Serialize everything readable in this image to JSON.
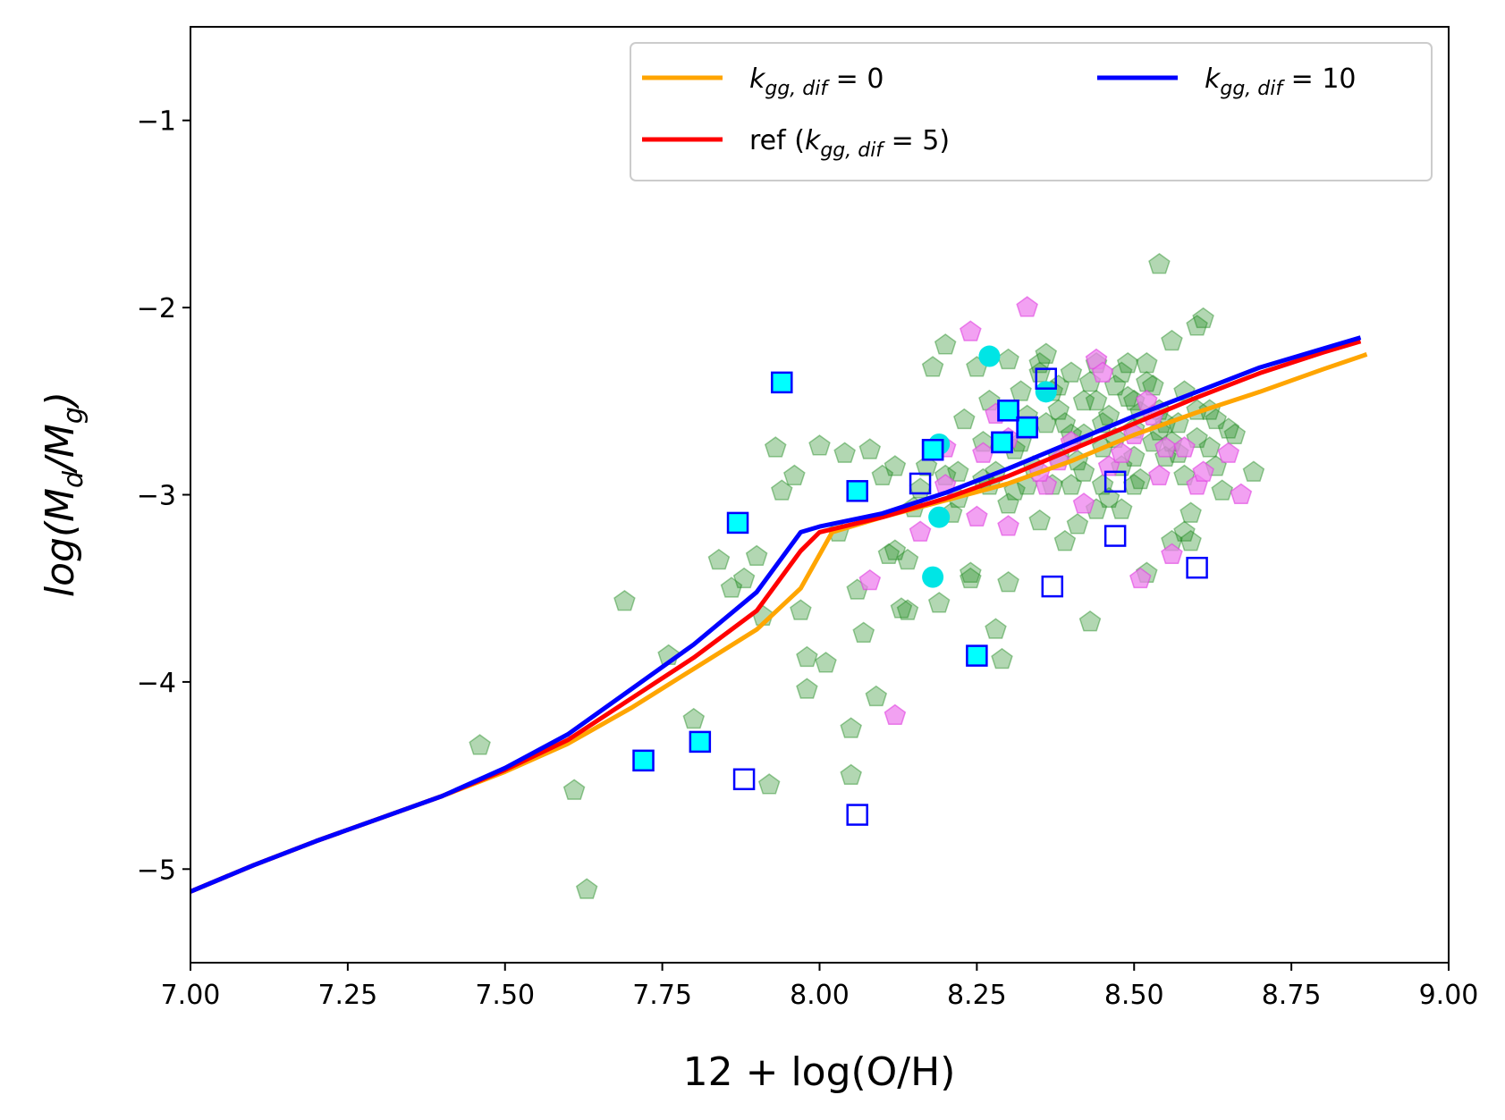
{
  "chart_data": {
    "type": "line",
    "title": "",
    "xlabel": "12 + log(O/H)",
    "ylabel_parts": [
      "log(M",
      "d",
      "/M",
      "g",
      ")"
    ],
    "xlim": [
      7.0,
      9.0
    ],
    "ylim": [
      -5.5,
      -0.5
    ],
    "xticks": [
      7.0,
      7.25,
      7.5,
      7.75,
      8.0,
      8.25,
      8.5,
      8.75,
      9.0
    ],
    "xtick_labels": [
      "7.00",
      "7.25",
      "7.50",
      "7.75",
      "8.00",
      "8.25",
      "8.50",
      "8.75",
      "9.00"
    ],
    "yticks": [
      -1,
      -2,
      -3,
      -4,
      -5
    ],
    "ytick_labels": [
      "−1",
      "−2",
      "−3",
      "−4",
      "−5"
    ],
    "grid": false,
    "legend": {
      "position": "top-right",
      "entries": [
        {
          "main": "k",
          "sub": "gg, dif",
          "suffix": " =  0",
          "prefix": "",
          "close": "",
          "color": "#ffa500"
        },
        {
          "main": "k",
          "sub": "gg, dif",
          "suffix": " =  5",
          "prefix": "ref (",
          "close": ")",
          "color": "#ff0000"
        },
        {
          "main": "k",
          "sub": "gg, dif",
          "suffix": " =  10",
          "prefix": "",
          "close": "",
          "color": "#0000ff"
        }
      ]
    },
    "series": [
      {
        "name": "k_gg,dif = 0",
        "color": "#ffa500",
        "points": [
          [
            7.0,
            -5.12
          ],
          [
            7.1,
            -4.98
          ],
          [
            7.2,
            -4.85
          ],
          [
            7.3,
            -4.73
          ],
          [
            7.4,
            -4.61
          ],
          [
            7.5,
            -4.48
          ],
          [
            7.6,
            -4.33
          ],
          [
            7.7,
            -4.14
          ],
          [
            7.8,
            -3.93
          ],
          [
            7.9,
            -3.72
          ],
          [
            7.97,
            -3.5
          ],
          [
            8.02,
            -3.2
          ],
          [
            8.1,
            -3.12
          ],
          [
            8.2,
            -3.03
          ],
          [
            8.3,
            -2.94
          ],
          [
            8.4,
            -2.82
          ],
          [
            8.5,
            -2.68
          ],
          [
            8.6,
            -2.56
          ],
          [
            8.7,
            -2.45
          ],
          [
            8.8,
            -2.33
          ],
          [
            8.87,
            -2.25
          ]
        ]
      },
      {
        "name": "ref (k_gg,dif = 5)",
        "color": "#ff0000",
        "points": [
          [
            7.0,
            -5.12
          ],
          [
            7.1,
            -4.98
          ],
          [
            7.2,
            -4.85
          ],
          [
            7.3,
            -4.73
          ],
          [
            7.4,
            -4.61
          ],
          [
            7.5,
            -4.47
          ],
          [
            7.6,
            -4.31
          ],
          [
            7.7,
            -4.09
          ],
          [
            7.8,
            -3.87
          ],
          [
            7.9,
            -3.62
          ],
          [
            7.97,
            -3.3
          ],
          [
            8.0,
            -3.2
          ],
          [
            8.1,
            -3.12
          ],
          [
            8.2,
            -3.02
          ],
          [
            8.3,
            -2.9
          ],
          [
            8.4,
            -2.76
          ],
          [
            8.5,
            -2.62
          ],
          [
            8.6,
            -2.48
          ],
          [
            8.7,
            -2.35
          ],
          [
            8.8,
            -2.24
          ],
          [
            8.86,
            -2.18
          ]
        ]
      },
      {
        "name": "k_gg,dif = 10",
        "color": "#0000ff",
        "points": [
          [
            7.0,
            -5.12
          ],
          [
            7.1,
            -4.98
          ],
          [
            7.2,
            -4.85
          ],
          [
            7.3,
            -4.73
          ],
          [
            7.4,
            -4.61
          ],
          [
            7.5,
            -4.46
          ],
          [
            7.6,
            -4.28
          ],
          [
            7.7,
            -4.04
          ],
          [
            7.8,
            -3.8
          ],
          [
            7.9,
            -3.52
          ],
          [
            7.97,
            -3.2
          ],
          [
            8.0,
            -3.17
          ],
          [
            8.1,
            -3.1
          ],
          [
            8.2,
            -2.99
          ],
          [
            8.3,
            -2.86
          ],
          [
            8.4,
            -2.72
          ],
          [
            8.5,
            -2.58
          ],
          [
            8.6,
            -2.45
          ],
          [
            8.7,
            -2.32
          ],
          [
            8.8,
            -2.22
          ],
          [
            8.86,
            -2.16
          ]
        ]
      }
    ],
    "scatter": {
      "green_pentagons": {
        "color": "#228b22",
        "points": [
          [
            7.46,
            -4.34
          ],
          [
            7.61,
            -4.58
          ],
          [
            7.63,
            -5.11
          ],
          [
            7.69,
            -3.57
          ],
          [
            7.76,
            -3.86
          ],
          [
            7.8,
            -4.2
          ],
          [
            7.84,
            -3.35
          ],
          [
            7.86,
            -3.5
          ],
          [
            7.88,
            -3.45
          ],
          [
            7.9,
            -3.33
          ],
          [
            7.91,
            -3.65
          ],
          [
            7.92,
            -4.55
          ],
          [
            7.93,
            -2.75
          ],
          [
            7.94,
            -2.98
          ],
          [
            7.96,
            -2.9
          ],
          [
            7.97,
            -3.62
          ],
          [
            7.98,
            -3.87
          ],
          [
            7.98,
            -4.04
          ],
          [
            8.0,
            -2.74
          ],
          [
            8.01,
            -3.9
          ],
          [
            8.03,
            -3.2
          ],
          [
            8.04,
            -2.78
          ],
          [
            8.05,
            -4.5
          ],
          [
            8.05,
            -4.25
          ],
          [
            8.06,
            -3.51
          ],
          [
            8.07,
            -3.74
          ],
          [
            8.08,
            -2.76
          ],
          [
            8.09,
            -4.08
          ],
          [
            8.1,
            -2.9
          ],
          [
            8.11,
            -3.32
          ],
          [
            8.12,
            -2.85
          ],
          [
            8.13,
            -3.61
          ],
          [
            8.14,
            -3.35
          ],
          [
            8.15,
            -3.07
          ],
          [
            8.16,
            -2.97
          ],
          [
            8.18,
            -2.32
          ],
          [
            8.19,
            -3.58
          ],
          [
            8.2,
            -2.2
          ],
          [
            8.21,
            -3.1
          ],
          [
            8.22,
            -2.88
          ],
          [
            8.23,
            -2.6
          ],
          [
            8.24,
            -3.42
          ],
          [
            8.25,
            -2.32
          ],
          [
            8.26,
            -2.92
          ],
          [
            8.27,
            -2.5
          ],
          [
            8.28,
            -3.72
          ],
          [
            8.29,
            -3.88
          ],
          [
            8.3,
            -2.28
          ],
          [
            8.3,
            -3.47
          ],
          [
            8.31,
            -2.98
          ],
          [
            8.32,
            -2.72
          ],
          [
            8.33,
            -2.58
          ],
          [
            8.34,
            -2.85
          ],
          [
            8.35,
            -3.14
          ],
          [
            8.35,
            -2.3
          ],
          [
            8.36,
            -2.25
          ],
          [
            8.37,
            -2.45
          ],
          [
            8.38,
            -2.8
          ],
          [
            8.39,
            -2.62
          ],
          [
            8.4,
            -2.35
          ],
          [
            8.4,
            -2.95
          ],
          [
            8.41,
            -3.16
          ],
          [
            8.42,
            -2.5
          ],
          [
            8.42,
            -2.68
          ],
          [
            8.43,
            -3.68
          ],
          [
            8.44,
            -2.3
          ],
          [
            8.45,
            -2.75
          ],
          [
            8.46,
            -2.58
          ],
          [
            8.47,
            -2.42
          ],
          [
            8.48,
            -3.08
          ],
          [
            8.48,
            -2.85
          ],
          [
            8.49,
            -2.3
          ],
          [
            8.5,
            -2.65
          ],
          [
            8.5,
            -2.5
          ],
          [
            8.51,
            -2.92
          ],
          [
            8.52,
            -2.4
          ],
          [
            8.52,
            -3.42
          ],
          [
            8.53,
            -2.72
          ],
          [
            8.54,
            -1.77
          ],
          [
            8.54,
            -2.55
          ],
          [
            8.55,
            -2.8
          ],
          [
            8.56,
            -3.25
          ],
          [
            8.56,
            -2.18
          ],
          [
            8.57,
            -2.62
          ],
          [
            8.58,
            -2.45
          ],
          [
            8.58,
            -2.9
          ],
          [
            8.59,
            -3.1
          ],
          [
            8.6,
            -2.1
          ],
          [
            8.6,
            -2.7
          ],
          [
            8.61,
            -2.06
          ],
          [
            8.62,
            -2.55
          ],
          [
            8.63,
            -2.85
          ],
          [
            8.64,
            -2.98
          ],
          [
            8.65,
            -2.65
          ],
          [
            8.66,
            -2.68
          ],
          [
            8.69,
            -2.88
          ],
          [
            8.59,
            -3.25
          ],
          [
            8.45,
            -2.95
          ],
          [
            8.38,
            -2.55
          ],
          [
            8.32,
            -2.45
          ],
          [
            8.28,
            -2.88
          ],
          [
            8.22,
            -3.02
          ],
          [
            8.2,
            -2.9
          ],
          [
            8.17,
            -2.85
          ],
          [
            8.36,
            -2.62
          ],
          [
            8.44,
            -2.5
          ],
          [
            8.47,
            -2.7
          ],
          [
            8.53,
            -2.42
          ],
          [
            8.57,
            -2.78
          ],
          [
            8.41,
            -2.82
          ],
          [
            8.33,
            -2.95
          ],
          [
            8.26,
            -2.72
          ],
          [
            8.43,
            -2.4
          ],
          [
            8.39,
            -3.25
          ],
          [
            8.46,
            -3.02
          ],
          [
            8.51,
            -2.56
          ],
          [
            8.55,
            -2.62
          ],
          [
            8.49,
            -2.48
          ],
          [
            8.5,
            -2.8
          ],
          [
            8.4,
            -2.68
          ],
          [
            8.3,
            -3.05
          ],
          [
            8.6,
            -2.55
          ],
          [
            8.62,
            -2.75
          ],
          [
            8.24,
            -3.45
          ],
          [
            8.12,
            -3.3
          ],
          [
            8.14,
            -3.62
          ],
          [
            8.35,
            -2.35
          ],
          [
            8.48,
            -2.35
          ],
          [
            8.52,
            -2.3
          ],
          [
            8.45,
            -2.62
          ],
          [
            8.38,
            -2.42
          ],
          [
            8.42,
            -2.88
          ],
          [
            8.58,
            -3.2
          ],
          [
            8.56,
            -2.72
          ],
          [
            8.63,
            -2.6
          ],
          [
            8.37,
            -2.95
          ],
          [
            8.31,
            -2.76
          ],
          [
            8.27,
            -2.95
          ],
          [
            8.44,
            -3.08
          ],
          [
            8.5,
            -2.95
          ],
          [
            8.54,
            -2.66
          ]
        ]
      },
      "magenta_pentagons": {
        "color": "#ee82ee",
        "points": [
          [
            8.08,
            -3.46
          ],
          [
            8.12,
            -4.18
          ],
          [
            8.16,
            -3.2
          ],
          [
            8.2,
            -2.75
          ],
          [
            8.24,
            -2.13
          ],
          [
            8.25,
            -3.12
          ],
          [
            8.26,
            -2.78
          ],
          [
            8.28,
            -2.57
          ],
          [
            8.3,
            -3.17
          ],
          [
            8.33,
            -2.0
          ],
          [
            8.36,
            -2.95
          ],
          [
            8.38,
            -2.82
          ],
          [
            8.4,
            -2.72
          ],
          [
            8.42,
            -3.05
          ],
          [
            8.44,
            -2.28
          ],
          [
            8.45,
            -2.35
          ],
          [
            8.46,
            -2.85
          ],
          [
            8.48,
            -2.78
          ],
          [
            8.5,
            -2.68
          ],
          [
            8.51,
            -3.45
          ],
          [
            8.52,
            -2.5
          ],
          [
            8.54,
            -2.9
          ],
          [
            8.55,
            -2.75
          ],
          [
            8.56,
            -3.32
          ],
          [
            8.58,
            -2.75
          ],
          [
            8.6,
            -2.95
          ],
          [
            8.61,
            -2.88
          ],
          [
            8.65,
            -2.78
          ],
          [
            8.67,
            -3.0
          ],
          [
            8.35,
            -2.88
          ],
          [
            8.3,
            -2.7
          ],
          [
            8.2,
            -2.95
          ],
          [
            8.53,
            -2.58
          ]
        ]
      },
      "cyan_circles": {
        "color": "#00e5e5",
        "points": [
          [
            8.27,
            -2.26
          ],
          [
            8.19,
            -2.73
          ],
          [
            8.19,
            -3.12
          ],
          [
            8.18,
            -3.44
          ],
          [
            8.3,
            -2.55
          ],
          [
            8.36,
            -2.45
          ]
        ]
      },
      "filled_squares": {
        "face": "#00ffff",
        "edge": "#0000ff",
        "points": [
          [
            7.94,
            -2.4
          ],
          [
            7.87,
            -3.15
          ],
          [
            7.72,
            -4.42
          ],
          [
            7.81,
            -4.32
          ],
          [
            8.06,
            -2.98
          ],
          [
            8.25,
            -3.86
          ],
          [
            8.3,
            -2.55
          ],
          [
            8.33,
            -2.64
          ],
          [
            8.29,
            -2.72
          ],
          [
            8.18,
            -2.76
          ]
        ]
      },
      "open_squares": {
        "face": "none",
        "edge": "#0000ff",
        "points": [
          [
            7.88,
            -4.52
          ],
          [
            8.06,
            -4.71
          ],
          [
            8.16,
            -2.94
          ],
          [
            8.18,
            -2.76
          ],
          [
            8.29,
            -2.72
          ],
          [
            8.3,
            -2.55
          ],
          [
            8.33,
            -2.64
          ],
          [
            8.36,
            -2.38
          ],
          [
            8.37,
            -3.49
          ],
          [
            8.47,
            -2.93
          ],
          [
            8.47,
            -3.22
          ],
          [
            8.6,
            -3.39
          ]
        ]
      }
    }
  }
}
